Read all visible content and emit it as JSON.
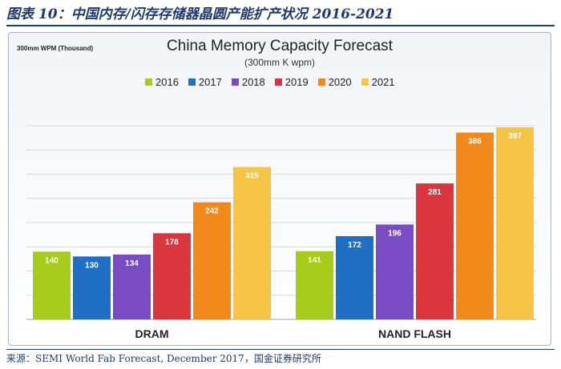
{
  "figure": {
    "caption": "图表 10：中国内存/闪存存储器晶圆产能扩产状况 2016-2021",
    "source": "来源：SEMI World Fab Forecast, December 2017，国金证券研究所"
  },
  "chart_data": {
    "type": "bar",
    "title": "China Memory Capacity Forecast",
    "subtitle": "(300mm K wpm)",
    "unit_label": "300mm WPM (Thousand)",
    "categories": [
      "DRAM",
      "NAND FLASH"
    ],
    "series": [
      {
        "name": "2016",
        "color": "#a8cc1c",
        "values": [
          140,
          141
        ]
      },
      {
        "name": "2017",
        "color": "#1f6fc5",
        "values": [
          130,
          172
        ]
      },
      {
        "name": "2018",
        "color": "#7a4cc4",
        "values": [
          134,
          196
        ]
      },
      {
        "name": "2019",
        "color": "#d9363e",
        "values": [
          178,
          281
        ]
      },
      {
        "name": "2020",
        "color": "#f28a1b",
        "values": [
          242,
          386
        ]
      },
      {
        "name": "2021",
        "color": "#f7c545",
        "values": [
          315,
          397
        ]
      }
    ],
    "ylim": [
      0,
      420
    ],
    "grid": true,
    "legend": "top-center"
  }
}
